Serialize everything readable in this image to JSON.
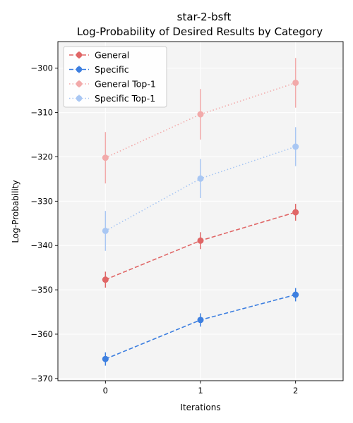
{
  "chart_data": {
    "type": "line",
    "title_line1": "star-2-bsft",
    "title_line2": "Log-Probability of Desired Results by Category",
    "xlabel": "Iterations",
    "ylabel": "Log-Probability",
    "x": [
      0,
      1,
      2
    ],
    "x_ticks": [
      "0",
      "1",
      "2"
    ],
    "xlim": [
      -0.5,
      2.5
    ],
    "ylim": [
      -370.5,
      -294
    ],
    "y_ticks": [
      -370,
      -360,
      -350,
      -340,
      -330,
      -320,
      -310,
      -300
    ],
    "grid": true,
    "legend_position": "top-left",
    "series": [
      {
        "name": "General",
        "color": "#e06666",
        "style": "dashed",
        "faded": false,
        "values": [
          -347.7,
          -338.9,
          -332.5
        ],
        "errors": [
          1.8,
          1.9,
          1.9
        ]
      },
      {
        "name": "Specific",
        "color": "#3d7fe0",
        "style": "dashed",
        "faded": false,
        "values": [
          -365.6,
          -356.8,
          -351.1
        ],
        "errors": [
          1.5,
          1.5,
          1.5
        ]
      },
      {
        "name": "General Top-1",
        "color": "#f2aaaa",
        "style": "dotted",
        "faded": true,
        "values": [
          -320.2,
          -310.4,
          -303.3
        ],
        "errors": [
          5.8,
          5.7,
          5.6
        ]
      },
      {
        "name": "Specific Top-1",
        "color": "#a9c7f3",
        "style": "dotted",
        "faded": true,
        "values": [
          -336.7,
          -324.9,
          -317.7
        ],
        "errors": [
          4.5,
          4.4,
          4.4
        ]
      }
    ]
  }
}
